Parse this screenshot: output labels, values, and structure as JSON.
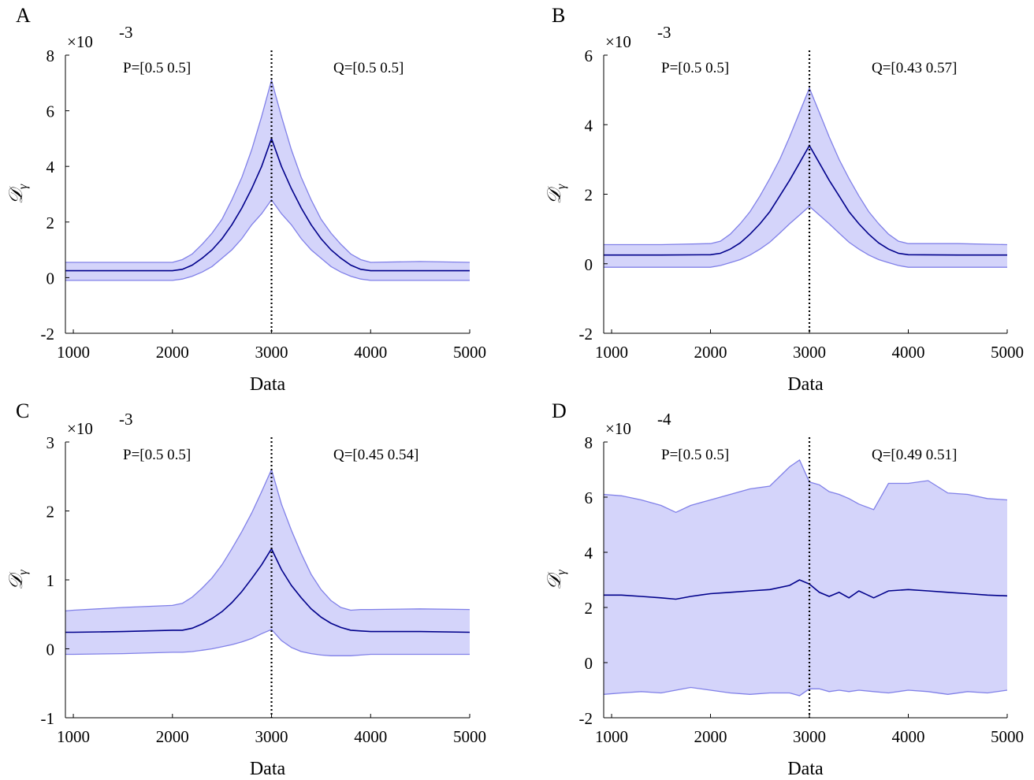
{
  "chart_data": [
    {
      "type": "line",
      "panel": "A",
      "xlabel": "Data",
      "ylabel": "𝒟",
      "ylabel_sub": "γ",
      "y_exponent": "-3",
      "xlim": [
        920,
        5000
      ],
      "ylim": [
        -2,
        8
      ],
      "xticks": [
        1000,
        2000,
        3000,
        4000,
        5000
      ],
      "yticks": [
        -2,
        0,
        2,
        4,
        6,
        8
      ],
      "vline_x": 3000,
      "annotations": [
        "P=[0.5 0.5]",
        "Q=[0.5 0.5]"
      ],
      "x": [
        920,
        1000,
        1500,
        2000,
        2100,
        2200,
        2300,
        2400,
        2500,
        2600,
        2700,
        2800,
        2900,
        3000,
        3100,
        3200,
        3300,
        3400,
        3500,
        3600,
        3700,
        3800,
        3900,
        4000,
        4500,
        5000
      ],
      "mean": [
        0.25,
        0.25,
        0.25,
        0.25,
        0.3,
        0.45,
        0.7,
        1.0,
        1.4,
        1.9,
        2.5,
        3.2,
        4.0,
        5.0,
        4.0,
        3.2,
        2.5,
        1.9,
        1.4,
        1.0,
        0.7,
        0.45,
        0.3,
        0.25,
        0.25,
        0.25
      ],
      "upper": [
        0.55,
        0.55,
        0.55,
        0.55,
        0.65,
        0.85,
        1.2,
        1.6,
        2.1,
        2.8,
        3.6,
        4.6,
        5.8,
        7.1,
        5.8,
        4.6,
        3.6,
        2.8,
        2.1,
        1.6,
        1.2,
        0.85,
        0.65,
        0.55,
        0.58,
        0.55
      ],
      "lower": [
        -0.1,
        -0.1,
        -0.1,
        -0.1,
        -0.05,
        0.05,
        0.2,
        0.4,
        0.7,
        1.0,
        1.4,
        1.9,
        2.3,
        2.8,
        2.3,
        1.9,
        1.4,
        1.0,
        0.7,
        0.4,
        0.2,
        0.05,
        -0.05,
        -0.1,
        -0.1,
        -0.1
      ]
    },
    {
      "type": "line",
      "panel": "B",
      "xlabel": "Data",
      "ylabel": "𝒟",
      "ylabel_sub": "γ",
      "y_exponent": "-3",
      "xlim": [
        920,
        5000
      ],
      "ylim": [
        -2,
        6
      ],
      "xticks": [
        1000,
        2000,
        3000,
        4000,
        5000
      ],
      "yticks": [
        -2,
        0,
        2,
        4,
        6
      ],
      "vline_x": 3000,
      "annotations": [
        "P=[0.5 0.5]",
        "Q=[0.43 0.57]"
      ],
      "x": [
        920,
        1000,
        1500,
        2000,
        2100,
        2200,
        2300,
        2400,
        2500,
        2600,
        2700,
        2800,
        2900,
        3000,
        3100,
        3200,
        3300,
        3400,
        3500,
        3600,
        3700,
        3800,
        3900,
        4000,
        4500,
        5000
      ],
      "mean": [
        0.25,
        0.25,
        0.25,
        0.26,
        0.3,
        0.42,
        0.6,
        0.85,
        1.15,
        1.5,
        1.95,
        2.4,
        2.9,
        3.4,
        2.9,
        2.4,
        1.95,
        1.5,
        1.15,
        0.85,
        0.6,
        0.42,
        0.3,
        0.26,
        0.25,
        0.25
      ],
      "upper": [
        0.55,
        0.55,
        0.55,
        0.58,
        0.65,
        0.85,
        1.15,
        1.5,
        1.95,
        2.45,
        3.0,
        3.65,
        4.35,
        5.05,
        4.35,
        3.65,
        3.0,
        2.45,
        1.95,
        1.5,
        1.15,
        0.85,
        0.65,
        0.58,
        0.58,
        0.55
      ],
      "lower": [
        -0.1,
        -0.1,
        -0.1,
        -0.1,
        -0.05,
        0.03,
        0.12,
        0.25,
        0.42,
        0.62,
        0.88,
        1.15,
        1.4,
        1.65,
        1.4,
        1.15,
        0.88,
        0.62,
        0.42,
        0.25,
        0.12,
        0.03,
        -0.05,
        -0.1,
        -0.1,
        -0.1
      ]
    },
    {
      "type": "line",
      "panel": "C",
      "xlabel": "Data",
      "ylabel": "𝒟",
      "ylabel_sub": "γ",
      "y_exponent": "-3",
      "xlim": [
        920,
        5000
      ],
      "ylim": [
        -1,
        3
      ],
      "xticks": [
        1000,
        2000,
        3000,
        4000,
        5000
      ],
      "yticks": [
        -1,
        0,
        1,
        2,
        3
      ],
      "vline_x": 3000,
      "annotations": [
        "P=[0.5 0.5]",
        "Q=[0.45 0.54]"
      ],
      "x": [
        920,
        1000,
        1500,
        2000,
        2100,
        2200,
        2300,
        2400,
        2500,
        2600,
        2700,
        2800,
        2900,
        3000,
        3100,
        3200,
        3300,
        3400,
        3500,
        3600,
        3700,
        3800,
        3900,
        4000,
        4500,
        5000
      ],
      "mean": [
        0.24,
        0.24,
        0.25,
        0.27,
        0.27,
        0.3,
        0.36,
        0.44,
        0.54,
        0.67,
        0.83,
        1.02,
        1.22,
        1.45,
        1.15,
        0.92,
        0.74,
        0.58,
        0.46,
        0.37,
        0.31,
        0.27,
        0.26,
        0.25,
        0.25,
        0.24
      ],
      "upper": [
        0.55,
        0.56,
        0.6,
        0.63,
        0.66,
        0.75,
        0.88,
        1.03,
        1.22,
        1.45,
        1.7,
        1.97,
        2.28,
        2.6,
        2.1,
        1.72,
        1.38,
        1.08,
        0.86,
        0.7,
        0.6,
        0.56,
        0.57,
        0.57,
        0.58,
        0.57
      ],
      "lower": [
        -0.08,
        -0.08,
        -0.07,
        -0.05,
        -0.05,
        -0.04,
        -0.02,
        0.0,
        0.03,
        0.06,
        0.1,
        0.15,
        0.22,
        0.28,
        0.12,
        0.02,
        -0.04,
        -0.07,
        -0.09,
        -0.1,
        -0.1,
        -0.1,
        -0.09,
        -0.08,
        -0.08,
        -0.08
      ]
    },
    {
      "type": "line",
      "panel": "D",
      "xlabel": "Data",
      "ylabel": "𝒟",
      "ylabel_sub": "γ",
      "y_exponent": "-4",
      "xlim": [
        920,
        5000
      ],
      "ylim": [
        -2,
        8
      ],
      "xticks": [
        1000,
        2000,
        3000,
        4000,
        5000
      ],
      "yticks": [
        -2,
        0,
        2,
        4,
        6,
        8
      ],
      "vline_x": 3000,
      "annotations": [
        "P=[0.5 0.5]",
        "Q=[0.49 0.51]"
      ],
      "x": [
        920,
        1100,
        1300,
        1500,
        1650,
        1800,
        2000,
        2200,
        2400,
        2600,
        2800,
        2900,
        3000,
        3100,
        3200,
        3300,
        3400,
        3500,
        3650,
        3800,
        4000,
        4200,
        4400,
        4600,
        4800,
        5000
      ],
      "mean": [
        2.45,
        2.45,
        2.4,
        2.35,
        2.3,
        2.4,
        2.5,
        2.55,
        2.6,
        2.65,
        2.8,
        3.0,
        2.85,
        2.55,
        2.4,
        2.55,
        2.35,
        2.6,
        2.35,
        2.6,
        2.65,
        2.6,
        2.55,
        2.5,
        2.45,
        2.42
      ],
      "upper": [
        6.1,
        6.05,
        5.9,
        5.7,
        5.45,
        5.7,
        5.9,
        6.1,
        6.3,
        6.4,
        7.1,
        7.35,
        6.55,
        6.45,
        6.2,
        6.1,
        5.95,
        5.75,
        5.55,
        6.5,
        6.5,
        6.6,
        6.15,
        6.1,
        5.95,
        5.9
      ],
      "lower": [
        -1.15,
        -1.1,
        -1.05,
        -1.1,
        -1.0,
        -0.9,
        -1.0,
        -1.1,
        -1.15,
        -1.1,
        -1.1,
        -1.2,
        -0.95,
        -0.95,
        -1.05,
        -1.0,
        -1.05,
        -1.0,
        -1.05,
        -1.1,
        -1.0,
        -1.05,
        -1.15,
        -1.05,
        -1.1,
        -1.0
      ]
    }
  ]
}
